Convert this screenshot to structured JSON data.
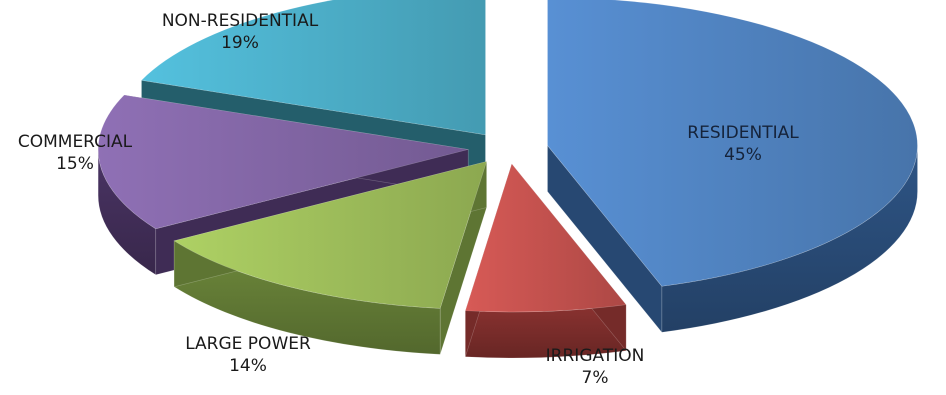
{
  "chart_data": {
    "type": "pie",
    "style": "3d-exploded",
    "slices": [
      {
        "label": "RESIDENTIAL",
        "value": 45,
        "value_label": "45%",
        "color": "#4f81bd",
        "side_color": "#2e5586"
      },
      {
        "label": "IRRIGATION",
        "value": 7,
        "value_label": "7%",
        "color": "#c0504d",
        "side_color": "#8a3230"
      },
      {
        "label": "LARGE POWER",
        "value": 14,
        "value_label": "14%",
        "color": "#9bbb59",
        "side_color": "#6f8a3c"
      },
      {
        "label": "COMMERCIAL",
        "value": 15,
        "value_label": "15%",
        "color": "#8064a2",
        "side_color": "#4a3464"
      },
      {
        "label": "NON-RESIDENTIAL",
        "value": 19,
        "value_label": "19%",
        "color": "#4bacc6",
        "side_color": "#2a6f7e"
      }
    ]
  }
}
